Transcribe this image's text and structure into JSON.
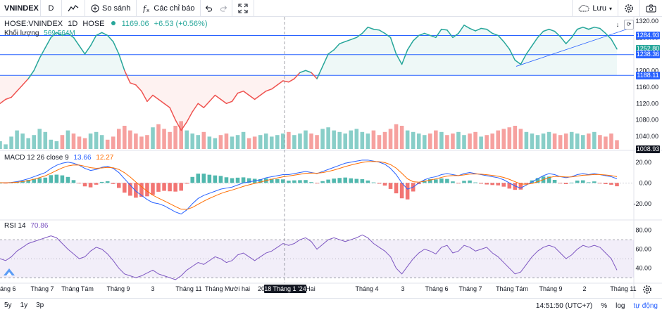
{
  "toolbar": {
    "symbol": "VNINDEX",
    "interval": "D",
    "compare_label": "So sánh",
    "indicators_label": "Các chỉ báo",
    "save_label": "Lưu"
  },
  "legend": {
    "title": "HOSE:VNINDEX",
    "interval": "1D",
    "exchange": "HOSE",
    "value": "1169.06",
    "change": "+6.53 (+0.56%)",
    "volume_label": "Khối lượng",
    "volume_value": "569.564M"
  },
  "macd": {
    "label": "MACD 12 26 close 9",
    "macd_value": "13.66",
    "signal_value": "12.27"
  },
  "rsi": {
    "label": "RSI 14",
    "value": "70.86"
  },
  "price_axis": [
    "1320.00",
    "1280.00",
    "1240.00",
    "1200.00",
    "1160.00",
    "1120.00",
    "1080.00",
    "1040.00"
  ],
  "macd_axis": [
    "20.00",
    "0.00",
    "-20.00"
  ],
  "rsi_axis": [
    "80.00",
    "60.00",
    "40.00"
  ],
  "price_tags": [
    {
      "text": "1284.93",
      "color": "#2962ff"
    },
    {
      "text": "1252.80",
      "color": "#26a69a"
    },
    {
      "text": "1238.36",
      "color": "#2962ff"
    },
    {
      "text": "1188.11",
      "color": "#2962ff"
    },
    {
      "text": "1008.93",
      "color": "#131722"
    }
  ],
  "time_axis": [
    "Tháng 6",
    "Tháng 7",
    "Tháng Tám",
    "Tháng 9",
    "3",
    "Tháng 11",
    "Tháng Mười hai",
    "20",
    "Hai",
    "Tháng 4",
    "3",
    "Tháng 6",
    "Tháng 7",
    "Tháng Tám",
    "Tháng 9",
    "2",
    "Tháng 11"
  ],
  "crosshair_date": "18 Tháng 1 '24",
  "bottom": {
    "ranges": [
      "5y",
      "1y",
      "3p"
    ],
    "clock": "14:51:50 (UTC+7)",
    "percent": "%",
    "log": "log",
    "auto": "tự động"
  },
  "colors": {
    "up": "#26a69a",
    "down": "#ef5350",
    "hline": "#2962ff",
    "rsi": "#7e57c2"
  },
  "chart_data": {
    "type": "line",
    "series": [
      {
        "values": [
          1120,
          1130,
          1135,
          1150,
          1165,
          1180,
          1200,
          1230,
          1255,
          1280,
          1292,
          1285,
          1290,
          1280,
          1260,
          1240,
          1260,
          1285,
          1292,
          1285,
          1270,
          1240,
          1200,
          1170,
          1165,
          1150,
          1125,
          1140,
          1130,
          1120,
          1110,
          1080,
          1055,
          1075,
          1100,
          1120,
          1110,
          1125,
          1140,
          1130,
          1120,
          1125,
          1145,
          1150,
          1140,
          1130,
          1140,
          1150,
          1155,
          1165,
          1175,
          1172,
          1180,
          1195,
          1200,
          1195,
          1180,
          1210,
          1240,
          1250,
          1265,
          1270,
          1275,
          1280,
          1290,
          1305,
          1300,
          1298,
          1290,
          1280,
          1240,
          1215,
          1250,
          1272,
          1285,
          1290,
          1285,
          1280,
          1300,
          1298,
          1280,
          1290,
          1310,
          1302,
          1296,
          1302,
          1300,
          1290,
          1285,
          1270,
          1252,
          1225,
          1215,
          1240,
          1260,
          1280,
          1295,
          1300,
          1295,
          1282,
          1265,
          1280,
          1300,
          1305,
          1300,
          1305,
          1302,
          1290,
          1276,
          1252
        ]
      },
      {
        "values": [
          0.5,
          0.3,
          0.8,
          1.2,
          1.0,
          0.7,
          0.9,
          1.3,
          1.1,
          0.6,
          0.5,
          0.9,
          1.2,
          1.0,
          0.8,
          0.7,
          1.0,
          1.1,
          0.9,
          0.6,
          0.8,
          1.3,
          1.5,
          1.2,
          1.0,
          0.8,
          0.9,
          1.4,
          1.6,
          1.3,
          1.1,
          1.5,
          1.8,
          1.2,
          1.0,
          0.9,
          1.1,
          0.8,
          0.7,
          0.9,
          1.0,
          0.8,
          0.9,
          1.1,
          0.7,
          0.8,
          0.9,
          1.0,
          0.8,
          0.9,
          1.0,
          1.1,
          0.9,
          1.0,
          1.2,
          1.0,
          0.9,
          1.3,
          1.4,
          1.2,
          1.1,
          1.0,
          1.2,
          1.3,
          1.1,
          1.0,
          1.2,
          0.9,
          1.1,
          1.3,
          1.6,
          1.5,
          1.2,
          1.1,
          1.0,
          0.9,
          1.0,
          1.2,
          1.1,
          0.9,
          1.0,
          1.1,
          0.9,
          1.0,
          1.1,
          0.8,
          0.9,
          1.0,
          1.2,
          1.3,
          1.4,
          1.5,
          1.3,
          1.1,
          1.0,
          0.9,
          1.0,
          1.1,
          1.0,
          0.9,
          1.0,
          1.1,
          1.0,
          0.9,
          1.0,
          1.1,
          0.9,
          0.8,
          1.0,
          0.57
        ]
      },
      {
        "values": [
          0.2,
          0.1,
          0.5,
          1.2,
          2.5,
          4,
          6,
          8,
          10,
          14,
          17,
          19,
          20,
          19,
          17,
          14,
          12,
          13,
          15,
          16,
          14,
          10,
          4,
          -2,
          -8,
          -12,
          -16,
          -19,
          -20,
          -22,
          -25,
          -28,
          -30,
          -26,
          -20,
          -15,
          -12,
          -10,
          -8,
          -6,
          -5,
          -4,
          -2,
          0,
          1,
          2,
          3,
          5,
          6,
          7,
          8,
          8,
          9,
          10,
          11,
          10,
          9,
          11,
          13,
          15,
          17,
          19,
          20,
          21,
          22,
          22,
          21,
          20,
          18,
          14,
          8,
          0,
          -6,
          -4,
          0,
          3,
          5,
          6,
          8,
          9,
          8,
          7,
          9,
          10,
          9,
          8,
          7,
          6,
          5,
          3,
          0,
          -3,
          -5,
          -2,
          1,
          4,
          7,
          9,
          8,
          6,
          5,
          6,
          8,
          9,
          8,
          9,
          8,
          7,
          6,
          4
        ]
      },
      {
        "values": [
          50,
          48,
          52,
          58,
          62,
          66,
          68,
          70,
          72,
          74,
          72,
          66,
          60,
          55,
          50,
          52,
          58,
          62,
          60,
          55,
          48,
          40,
          34,
          32,
          30,
          32,
          35,
          38,
          34,
          32,
          30,
          28,
          32,
          38,
          42,
          46,
          44,
          48,
          52,
          50,
          46,
          48,
          54,
          56,
          52,
          48,
          52,
          56,
          58,
          62,
          66,
          64,
          66,
          70,
          72,
          68,
          60,
          65,
          70,
          72,
          70,
          68,
          70,
          72,
          75,
          72,
          66,
          62,
          58,
          52,
          40,
          34,
          42,
          50,
          56,
          60,
          58,
          55,
          62,
          64,
          56,
          58,
          64,
          62,
          58,
          60,
          62,
          56,
          52,
          46,
          40,
          34,
          36,
          44,
          52,
          58,
          62,
          64,
          62,
          56,
          50,
          54,
          60,
          64,
          62,
          64,
          62,
          56,
          50,
          38
        ]
      }
    ],
    "hlines": [
      1284.93,
      1238.36,
      1188.11
    ],
    "ylim": [
      1008,
      1330
    ]
  }
}
